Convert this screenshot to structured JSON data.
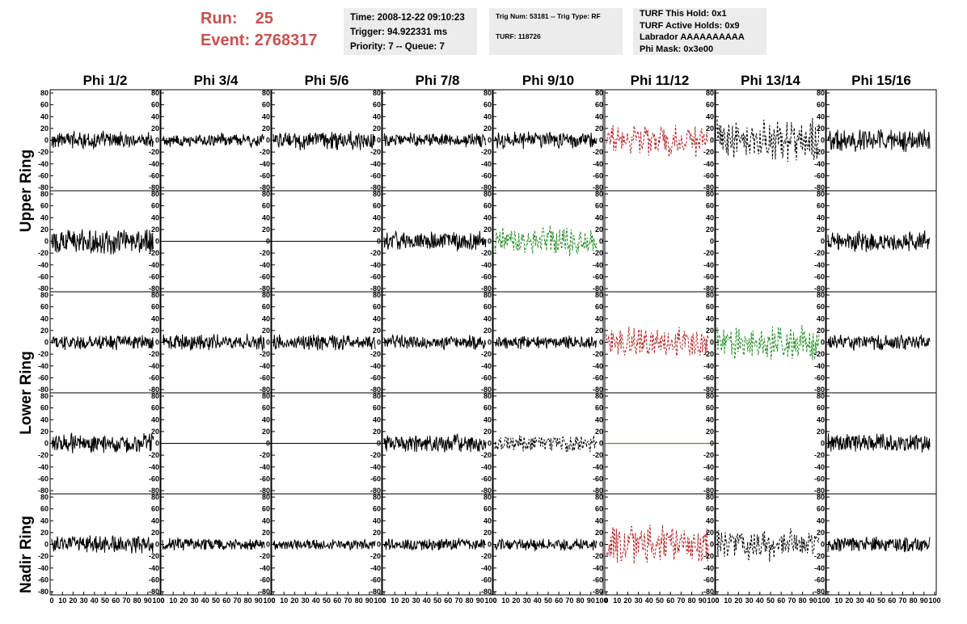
{
  "header": {
    "run_label": "Run:",
    "run_value": "25",
    "event_label": "Event:",
    "event_value": "2768317"
  },
  "info": {
    "time": "Time: 2008-12-22 09:10:23",
    "trigger": "Trigger: 94.922331 ms",
    "priority": "Priority: 7 -- Queue: 7",
    "trig_num": "Trig Num: 53181 -- Trig Type: RF",
    "turf": "TURF: 118726",
    "turf_this_hold": "TURF This Hold: 0x1",
    "turf_active_holds": "TURF Active Holds: 0x9",
    "labrador": "Labrador AAAAAAAAAA",
    "phi_mask": "Phi Mask: 0x3e00"
  },
  "colors": {
    "header_red": "#c8504e",
    "trace_black": "#000000",
    "trace_red": "#b22222",
    "trace_green": "#228b22"
  },
  "chart_data": {
    "type": "line",
    "columns": [
      "Phi 1/2",
      "Phi 3/4",
      "Phi 5/6",
      "Phi 7/8",
      "Phi 9/10",
      "Phi 11/12",
      "Phi 13/14",
      "Phi 15/16"
    ],
    "rings": [
      "Upper Ring",
      "Lower Ring",
      "Nadir Ring"
    ],
    "xlim": [
      0,
      100
    ],
    "ylim": [
      -80,
      80
    ],
    "x_ticks": [
      "0",
      "10",
      "20",
      "30",
      "40",
      "50",
      "60",
      "70",
      "80",
      "90",
      "100"
    ],
    "y_ticks": [
      "80",
      "60",
      "40",
      "20",
      "0",
      "-20",
      "-40",
      "-60",
      "-80"
    ],
    "panels": [
      [
        {
          "style": "solid",
          "color": "black",
          "amp": 14
        },
        {
          "style": "solid",
          "color": "black",
          "amp": 11
        },
        {
          "style": "solid",
          "color": "black",
          "amp": 15
        },
        {
          "style": "solid",
          "color": "black",
          "amp": 11
        },
        {
          "style": "solid",
          "color": "black",
          "amp": 13
        },
        {
          "style": "dashed",
          "color": "red",
          "amp": 25
        },
        {
          "style": "dashed",
          "color": "black",
          "amp": 33
        },
        {
          "style": "solid",
          "color": "black",
          "amp": 18
        }
      ],
      [
        {
          "style": "solid",
          "color": "black",
          "amp": 20
        },
        {
          "style": "flat",
          "color": "black",
          "amp": 0
        },
        {
          "style": "flat",
          "color": "black",
          "amp": 0
        },
        {
          "style": "solid",
          "color": "black",
          "amp": 15
        },
        {
          "style": "dashed",
          "color": "green",
          "amp": 25
        },
        {
          "style": "none",
          "color": "black",
          "amp": 0
        },
        {
          "style": "none",
          "color": "black",
          "amp": 0
        },
        {
          "style": "solid",
          "color": "black",
          "amp": 16
        }
      ],
      [
        {
          "style": "solid",
          "color": "black",
          "amp": 12
        },
        {
          "style": "solid",
          "color": "black",
          "amp": 13
        },
        {
          "style": "solid",
          "color": "black",
          "amp": 13
        },
        {
          "style": "solid",
          "color": "black",
          "amp": 11
        },
        {
          "style": "solid",
          "color": "black",
          "amp": 10
        },
        {
          "style": "dashed",
          "color": "red",
          "amp": 25
        },
        {
          "style": "dashed",
          "color": "green",
          "amp": 27
        },
        {
          "style": "solid",
          "color": "black",
          "amp": 12
        }
      ],
      [
        {
          "style": "solid",
          "color": "black",
          "amp": 15
        },
        {
          "style": "flat",
          "color": "black",
          "amp": 0
        },
        {
          "style": "flat",
          "color": "black",
          "amp": 0
        },
        {
          "style": "solid",
          "color": "black",
          "amp": 14
        },
        {
          "style": "dashed",
          "color": "black",
          "amp": 14
        },
        {
          "style": "flat",
          "color": "green",
          "amp": 0
        },
        {
          "style": "none",
          "color": "black",
          "amp": 0
        },
        {
          "style": "solid",
          "color": "black",
          "amp": 15
        }
      ],
      [
        {
          "style": "solid",
          "color": "black",
          "amp": 14
        },
        {
          "style": "solid",
          "color": "black",
          "amp": 10
        },
        {
          "style": "solid",
          "color": "black",
          "amp": 9
        },
        {
          "style": "solid",
          "color": "black",
          "amp": 10
        },
        {
          "style": "solid",
          "color": "black",
          "amp": 10
        },
        {
          "style": "dashed",
          "color": "red",
          "amp": 30
        },
        {
          "style": "dashed",
          "color": "black",
          "amp": 25
        },
        {
          "style": "solid",
          "color": "black",
          "amp": 12
        }
      ]
    ]
  }
}
